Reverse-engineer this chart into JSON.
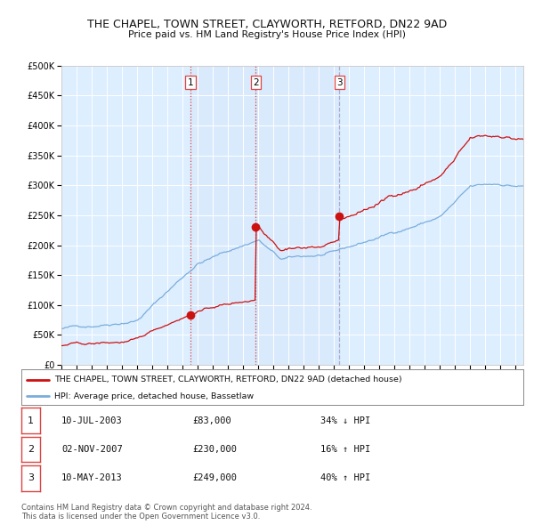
{
  "title": "THE CHAPEL, TOWN STREET, CLAYWORTH, RETFORD, DN22 9AD",
  "subtitle": "Price paid vs. HM Land Registry's House Price Index (HPI)",
  "legend_line1": "THE CHAPEL, TOWN STREET, CLAYWORTH, RETFORD, DN22 9AD (detached house)",
  "legend_line2": "HPI: Average price, detached house, Bassetlaw",
  "footer1": "Contains HM Land Registry data © Crown copyright and database right 2024.",
  "footer2": "This data is licensed under the Open Government Licence v3.0.",
  "sales": [
    {
      "label": "1",
      "date": "10-JUL-2003",
      "price": 83000,
      "pct": "34%",
      "dir": "↓",
      "x_year": 2003.52
    },
    {
      "label": "2",
      "date": "02-NOV-2007",
      "price": 230000,
      "pct": "16%",
      "dir": "↑",
      "x_year": 2007.84
    },
    {
      "label": "3",
      "date": "10-MAY-2013",
      "price": 249000,
      "pct": "40%",
      "dir": "↑",
      "x_year": 2013.36
    }
  ],
  "hpi_color": "#7aaddc",
  "price_color": "#cc1111",
  "vline_color_red": "#dd4444",
  "vline_color_gray": "#aaaacc",
  "plot_bg": "#ddeeff",
  "grid_color": "#ffffff",
  "fig_bg": "#ffffff",
  "ylim": [
    0,
    500000
  ],
  "xlim_start": 1995.0,
  "xlim_end": 2025.5,
  "yticks": [
    0,
    50000,
    100000,
    150000,
    200000,
    250000,
    300000,
    350000,
    400000,
    450000,
    500000
  ],
  "xticks": [
    1995,
    1996,
    1997,
    1998,
    1999,
    2000,
    2001,
    2002,
    2003,
    2004,
    2005,
    2006,
    2007,
    2008,
    2009,
    2010,
    2011,
    2012,
    2013,
    2014,
    2015,
    2016,
    2017,
    2018,
    2019,
    2020,
    2021,
    2022,
    2023,
    2024,
    2025
  ]
}
